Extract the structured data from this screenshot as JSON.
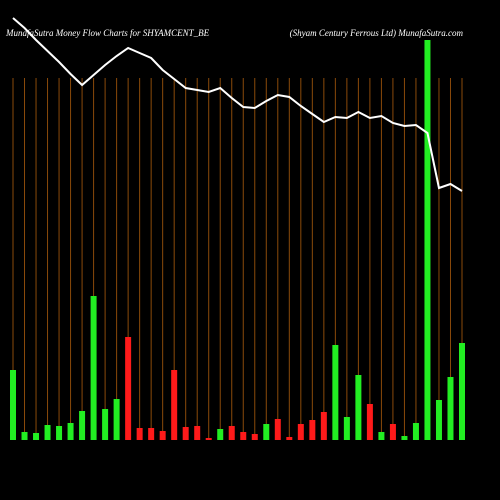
{
  "chart_data": {
    "type": "money-flow",
    "title": "MunafaSutra  Money Flow  Charts for SHYAMCENT_BE",
    "subtitle": "(Shyam Century Ferrous Ltd) MunafaSutra.com",
    "categories": [
      null,
      null,
      null,
      null,
      null,
      null,
      null,
      null,
      null,
      null,
      null,
      null,
      null,
      null,
      null,
      null,
      null,
      null,
      null,
      null,
      null,
      null,
      null,
      null,
      null,
      null,
      null,
      null,
      null,
      null,
      null,
      null,
      null,
      null,
      null,
      null,
      null,
      null,
      null,
      null
    ],
    "ylim": [
      0,
      400
    ],
    "y2lim": [
      0,
      500
    ],
    "grid": true,
    "grid_color": "#8a4a0a",
    "series": [
      {
        "type": "bar",
        "values": [
          70,
          8,
          7,
          15,
          14,
          17,
          29,
          144,
          31,
          41,
          103,
          12,
          12,
          9,
          70,
          13,
          14,
          2,
          11,
          14,
          8,
          6,
          16,
          21,
          3,
          16,
          20,
          28,
          95,
          23,
          65,
          36,
          8,
          16,
          4,
          17,
          400,
          40,
          63,
          97
        ],
        "colors": [
          "#22ee22",
          "#22ee22",
          "#22ee22",
          "#22ee22",
          "#22ee22",
          "#22ee22",
          "#22ee22",
          "#22ee22",
          "#22ee22",
          "#22ee22",
          "#ff1a1a",
          "#ff1a1a",
          "#ff1a1a",
          "#ff1a1a",
          "#ff1a1a",
          "#ff1a1a",
          "#ff1a1a",
          "#ff1a1a",
          "#22ee22",
          "#ff1a1a",
          "#ff1a1a",
          "#ff1a1a",
          "#22ee22",
          "#ff1a1a",
          "#ff1a1a",
          "#ff1a1a",
          "#ff1a1a",
          "#ff1a1a",
          "#22ee22",
          "#22ee22",
          "#22ee22",
          "#ff1a1a",
          "#22ee22",
          "#ff1a1a",
          "#22ee22",
          "#22ee22",
          "#22ee22",
          "#22ee22",
          "#22ee22",
          "#22ee22"
        ]
      },
      {
        "type": "line",
        "axis": "y2",
        "color": "#ffffff",
        "values": [
          482,
          472,
          460,
          449,
          438,
          426,
          415,
          425,
          435,
          444,
          452,
          447,
          442,
          430,
          421,
          412,
          410,
          408,
          412,
          402,
          393,
          392,
          399,
          405,
          403,
          394,
          386,
          378,
          383,
          382,
          388,
          382,
          384,
          377,
          374,
          375,
          367,
          312,
          316,
          309
        ]
      }
    ]
  }
}
